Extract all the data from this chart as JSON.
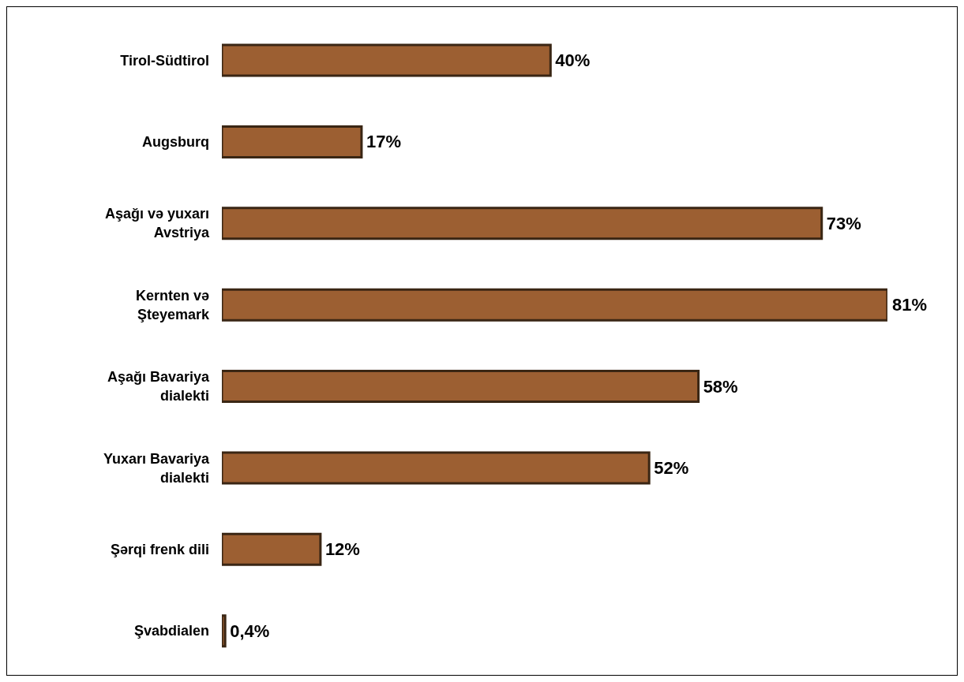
{
  "chart_data": {
    "type": "bar",
    "orientation": "horizontal",
    "categories": [
      "Tirol-Südtirol",
      "Augsburq",
      "Aşağı və yuxarı Avstriya",
      "Kernten və Şteyemark",
      "Aşağı Bavariya dialekti",
      "Yuxarı Bavariya dialekti",
      "Şərqi frenk dili",
      "Şvabdialen"
    ],
    "values": [
      40,
      17,
      73,
      81,
      58,
      52,
      12,
      0.4
    ],
    "value_labels": [
      "40%",
      "17%",
      "73%",
      "81%",
      "58%",
      "52%",
      "12%",
      "0,4%"
    ],
    "color": "#9c5f32",
    "grid": false,
    "legend": false
  }
}
